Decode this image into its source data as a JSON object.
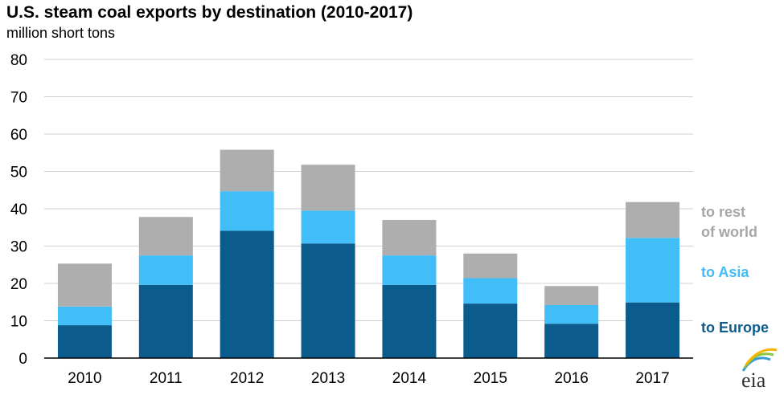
{
  "chart_data": {
    "type": "bar",
    "stacked": true,
    "title": "U.S. steam coal exports by destination (2010-2017)",
    "ylabel": "million short tons",
    "xlabel": "",
    "ylim": [
      0,
      80
    ],
    "yticks": [
      0,
      10,
      20,
      30,
      40,
      50,
      60,
      70,
      80
    ],
    "grid": true,
    "categories": [
      "2010",
      "2011",
      "2012",
      "2013",
      "2014",
      "2015",
      "2016",
      "2017"
    ],
    "series": [
      {
        "name": "to Europe",
        "color": "#0b5b8c",
        "values": [
          8.8,
          19.6,
          34.1,
          30.7,
          19.6,
          14.6,
          9.2,
          14.9
        ]
      },
      {
        "name": "to Asia",
        "color": "#41bdf8",
        "values": [
          5.0,
          7.9,
          10.6,
          8.8,
          7.9,
          6.8,
          5.0,
          17.3
        ]
      },
      {
        "name": "to rest of world",
        "color": "#aeaeae",
        "values": [
          11.5,
          10.3,
          11.1,
          12.3,
          9.5,
          6.6,
          5.1,
          9.6
        ]
      }
    ],
    "legend_labels": {
      "rest": [
        "to rest",
        "of world"
      ],
      "asia": "to Asia",
      "europe": "to Europe"
    },
    "legend_placement": "right"
  },
  "logo": {
    "text": "eia",
    "name": "eia-logo-icon"
  },
  "colors": {
    "grid": "#d0d0d0",
    "axis": "#000000"
  }
}
